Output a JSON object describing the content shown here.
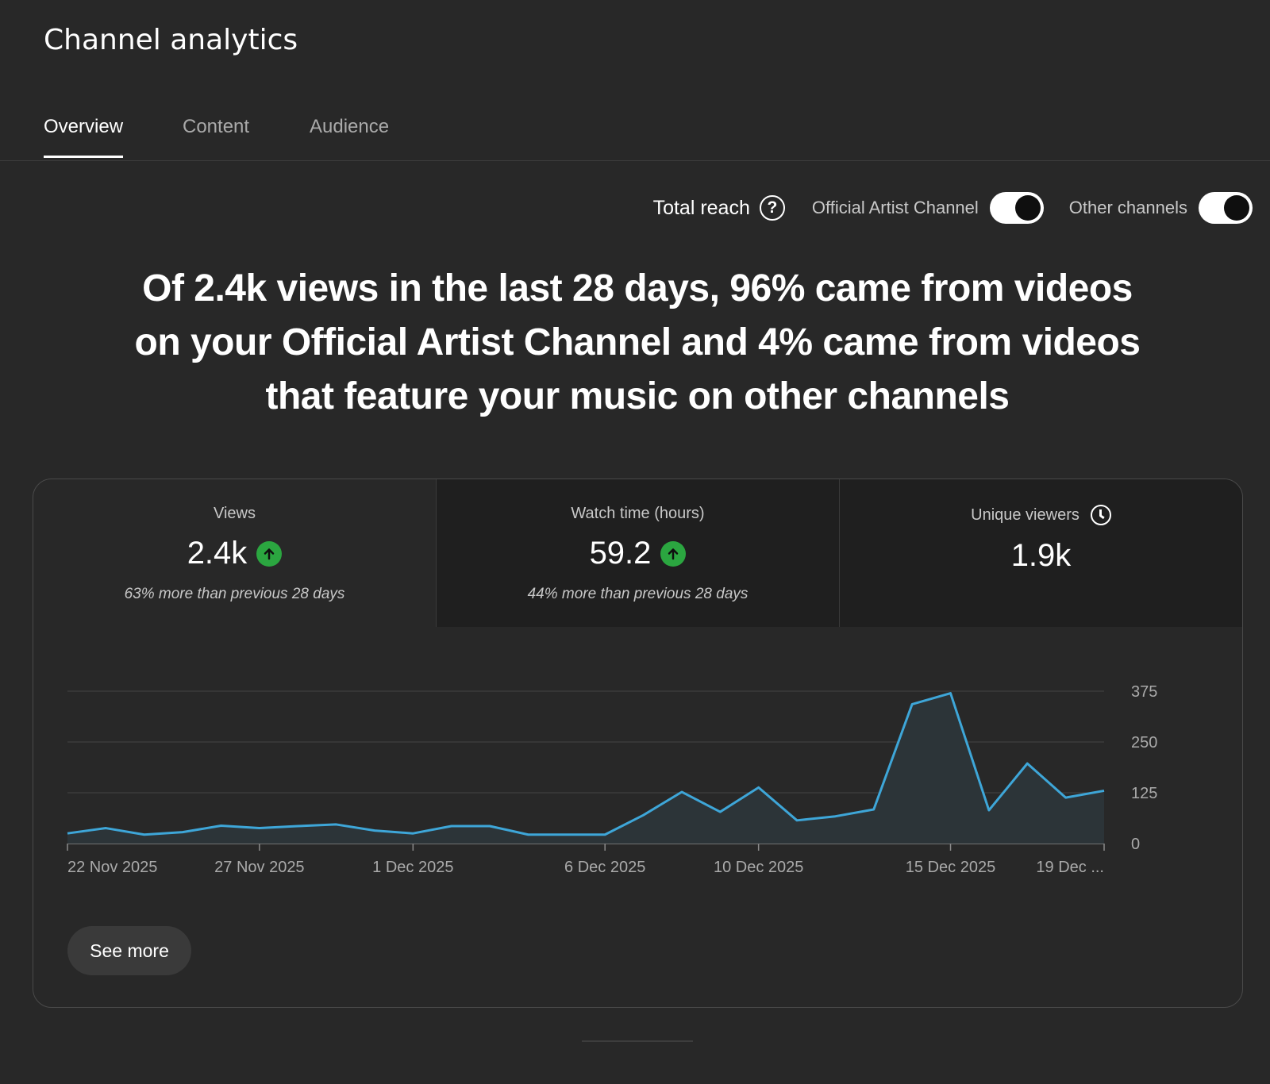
{
  "page_title": "Channel analytics",
  "tabs": [
    {
      "label": "Overview",
      "active": true
    },
    {
      "label": "Content",
      "active": false
    },
    {
      "label": "Audience",
      "active": false
    }
  ],
  "reach": {
    "label": "Total reach",
    "help_icon": "help-circle-icon",
    "toggles": [
      {
        "label": "Official Artist Channel",
        "on": true
      },
      {
        "label": "Other channels",
        "on": true
      }
    ]
  },
  "headline": "Of 2.4k views in the last 28 days, 96% came from videos on your Official Artist Channel and 4% came from videos that feature your music on other channels",
  "metrics": [
    {
      "label": "Views",
      "value": "2.4k",
      "trend_icon": "arrow-up-icon",
      "comparison": "63% more than previous 28 days"
    },
    {
      "label": "Watch time (hours)",
      "value": "59.2",
      "trend_icon": "arrow-up-icon",
      "comparison": "44% more than previous 28 days"
    },
    {
      "label": "Unique viewers",
      "value": "1.9k",
      "info_icon": "clock-icon",
      "comparison": ""
    }
  ],
  "chart_data": {
    "type": "area",
    "x_tick_labels": [
      "22 Nov 2025",
      "27 Nov 2025",
      "1 Dec 2025",
      "6 Dec 2025",
      "10 Dec 2025",
      "15 Dec 2025",
      "19 Dec ..."
    ],
    "x_tick_days": [
      0,
      5,
      9,
      14,
      18,
      23,
      27
    ],
    "y_ticks": [
      0,
      125,
      250,
      375
    ],
    "ylim": [
      0,
      375
    ],
    "values": [
      25,
      38,
      22,
      28,
      44,
      38,
      43,
      47,
      32,
      25,
      43,
      43,
      22,
      22,
      22,
      70,
      127,
      78,
      138,
      57,
      67,
      84,
      343,
      370,
      82,
      197,
      113,
      130
    ],
    "line_color": "#3ea6d8",
    "fill_color": "#2c3438",
    "grid": true
  },
  "see_more_label": "See more",
  "colors": {
    "background": "#282828",
    "trend_up": "#2ba640",
    "line": "#3ea6d8"
  }
}
